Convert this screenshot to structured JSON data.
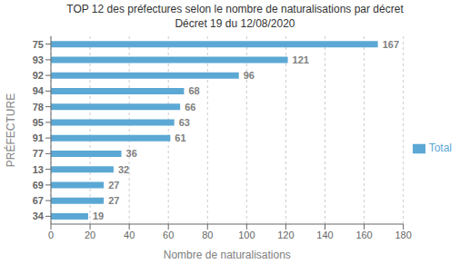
{
  "chart_data": {
    "type": "bar",
    "orientation": "horizontal",
    "title": "TOP 12 des préfectures selon le nombre de naturalisations par décret",
    "subtitle": "Décret 19 du 12/08/2020",
    "x_label": "Nombre de naturalisations",
    "y_label": "PRÉFECTURE",
    "categories": [
      "75",
      "93",
      "92",
      "94",
      "78",
      "95",
      "91",
      "77",
      "13",
      "69",
      "67",
      "34"
    ],
    "series": [
      {
        "name": "Total",
        "color": "#5BA8D4",
        "values": [
          167,
          121,
          96,
          68,
          66,
          63,
          61,
          36,
          32,
          27,
          27,
          19
        ]
      }
    ],
    "xlim": [
      0,
      180
    ],
    "xticks": [
      0,
      20,
      40,
      60,
      80,
      100,
      120,
      140,
      160,
      180
    ],
    "grid": true,
    "legend": "right",
    "data_labels": true
  }
}
